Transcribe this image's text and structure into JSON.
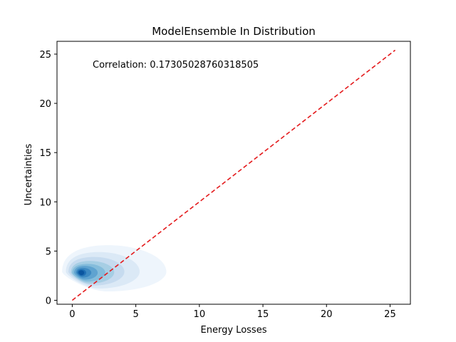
{
  "chart_data": {
    "type": "kde_density",
    "title": "ModelEnsemble In Distribution",
    "xlabel": "Energy Losses",
    "ylabel": "Uncertainties",
    "annotation": "Correlation: 0.17305028760318505",
    "xlim": [
      -1.2,
      26.6
    ],
    "ylim": [
      -0.4,
      26.3
    ],
    "xticks": [
      0,
      5,
      10,
      15,
      20,
      25
    ],
    "yticks": [
      0,
      5,
      10,
      15,
      20,
      25
    ],
    "grid": false,
    "legend": "none",
    "reference_line": {
      "x": [
        0,
        25.4
      ],
      "y": [
        0,
        25.4
      ],
      "style": "dashed",
      "color": "#e41a1c"
    },
    "density": {
      "colormap": "Blues",
      "peak": {
        "x": 0.7,
        "y": 2.8
      },
      "levels": [
        {
          "x": [
            -0.8,
            7.4
          ],
          "y": [
            0.9,
            5.6
          ],
          "center": [
            2.8,
            2.9
          ],
          "color": "#eef5fc"
        },
        {
          "x": [
            -0.5,
            5.3
          ],
          "y": [
            1.2,
            4.9
          ],
          "center": [
            2.1,
            2.9
          ],
          "color": "#dbe9f6"
        },
        {
          "x": [
            -0.3,
            4.1
          ],
          "y": [
            1.5,
            4.4
          ],
          "center": [
            1.7,
            2.9
          ],
          "color": "#c6dbef"
        },
        {
          "x": [
            -0.1,
            3.3
          ],
          "y": [
            1.7,
            4.0
          ],
          "center": [
            1.4,
            2.85
          ],
          "color": "#a6cee4"
        },
        {
          "x": [
            0.0,
            2.6
          ],
          "y": [
            1.9,
            3.7
          ],
          "center": [
            1.2,
            2.8
          ],
          "color": "#84bcdb"
        },
        {
          "x": [
            0.15,
            2.0
          ],
          "y": [
            2.1,
            3.5
          ],
          "center": [
            1.0,
            2.8
          ],
          "color": "#5fa3d0"
        },
        {
          "x": [
            0.3,
            1.5
          ],
          "y": [
            2.3,
            3.3
          ],
          "center": [
            0.85,
            2.8
          ],
          "color": "#3e8ac2"
        },
        {
          "x": [
            0.4,
            1.1
          ],
          "y": [
            2.45,
            3.15
          ],
          "center": [
            0.75,
            2.8
          ],
          "color": "#2070b4"
        },
        {
          "x": [
            0.5,
            0.95
          ],
          "y": [
            2.55,
            3.05
          ],
          "center": [
            0.7,
            2.8
          ],
          "color": "#0b56a0"
        }
      ]
    }
  }
}
